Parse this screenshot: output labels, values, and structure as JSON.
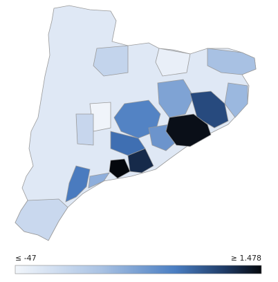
{
  "legend": {
    "min_label": "≤ -47",
    "max_label": "≥ 1.478"
  }
}
